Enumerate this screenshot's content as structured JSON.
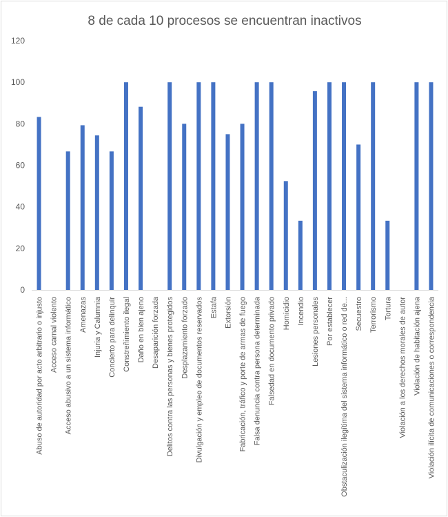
{
  "chart_data": {
    "type": "bar",
    "title": "8 de cada 10 procesos se encuentran inactivos",
    "xlabel": "",
    "ylabel": "",
    "ylim": [
      0,
      120
    ],
    "yticks": [
      "0",
      "20",
      "40",
      "60",
      "80",
      "100",
      "120"
    ],
    "grid": false,
    "bar_color": "#4472C4",
    "categories": [
      "Abuso de autoridad por acto arbitrario o injusto",
      "Acceso carnal violento",
      "Acceso abusivo a un sistema informático",
      "Amenazas",
      "Injuria y Calumnia",
      "Concierto para delinquir",
      "Constreñimiento ilegal",
      "Daño en bien ajeno",
      "Desaparición forzada",
      "Delitos contra las personas y bienes protegidos",
      "Desplazamiento forzado",
      "Divulgación y empleo de documentos reservados",
      "Estafa",
      "Extorsión",
      "Fabricación, tráfico y porte de armas de fuego",
      "Falsa denuncia contra persona determinada",
      "Falsedad en documento privado",
      "Homicidio",
      "Incendio",
      "Lesiones personales",
      "Por establecer",
      "Obstaculización ilegítima del sistema informático o red de...",
      "Secuestro",
      "Terrorismo",
      "Tortura",
      "Violación a los derechos morales de autor",
      "Violación de habitación ajena",
      "Violación ilícita de comunicaciones o correspondencia"
    ],
    "values": [
      83.3,
      0,
      66.7,
      79.3,
      74.4,
      66.7,
      100,
      88.2,
      0,
      100,
      80,
      100,
      100,
      75,
      80,
      100,
      100,
      52.4,
      33.3,
      95.7,
      100,
      100,
      70,
      100,
      33.3,
      0,
      100,
      100
    ]
  }
}
